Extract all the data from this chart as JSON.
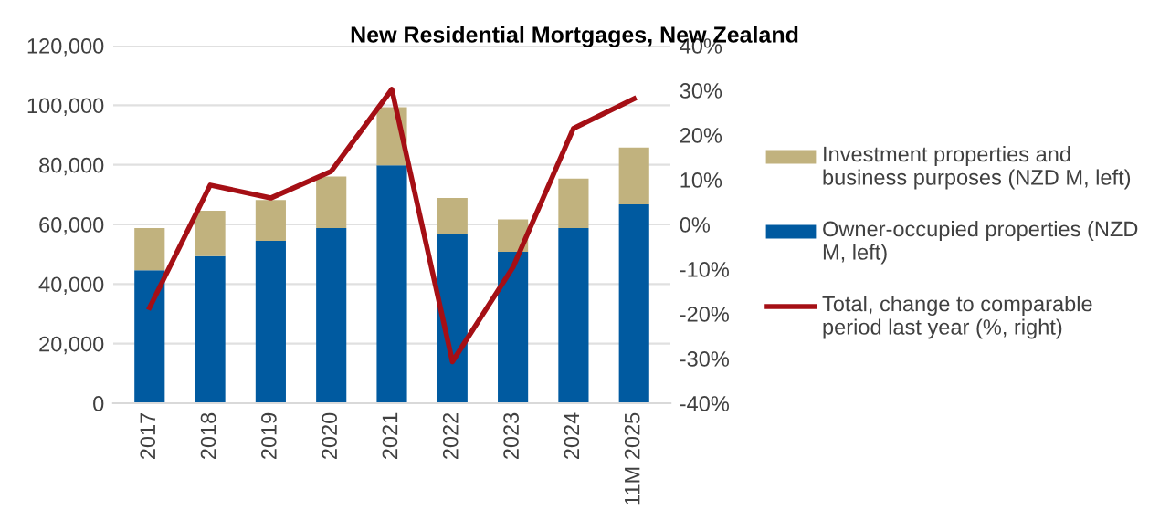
{
  "chart_data": {
    "type": "bar",
    "title": "New Residential Mortgages, New Zealand",
    "stacked": true,
    "categories": [
      "2017",
      "2018",
      "2019",
      "2020",
      "2021",
      "2022",
      "2023",
      "2024",
      "11M 2025"
    ],
    "series": [
      {
        "name": "Owner-occupied properties (NZD M, left)",
        "color": "#005aa0",
        "values": [
          44600,
          49400,
          54500,
          58800,
          79800,
          56600,
          50800,
          58800,
          66700
        ]
      },
      {
        "name": "Investment properties and business purposes (NZD M, left)",
        "color": "#c1b27e",
        "values": [
          14200,
          15200,
          13700,
          17300,
          19500,
          12300,
          10900,
          16600,
          19100
        ]
      },
      {
        "name": "Total, change to comparable period last year (%, right)",
        "type": "line",
        "axis": "y2",
        "color": "#a50f15",
        "values": [
          -18.6,
          8.8,
          5.9,
          11.9,
          30.2,
          -30.7,
          -9.6,
          21.5,
          28.1
        ]
      }
    ],
    "ylim": [
      0,
      120000
    ],
    "yticks": [
      {
        "value": 0,
        "label": "0"
      },
      {
        "value": 20000,
        "label": "20,000"
      },
      {
        "value": 40000,
        "label": "40,000"
      },
      {
        "value": 60000,
        "label": "60,000"
      },
      {
        "value": 80000,
        "label": "80,000"
      },
      {
        "value": 100000,
        "label": "100,000"
      },
      {
        "value": 120000,
        "label": "120,000"
      }
    ],
    "y2lim": [
      -40,
      40
    ],
    "y2ticks": [
      {
        "value": -40,
        "label": "-40%"
      },
      {
        "value": -30,
        "label": "-30%"
      },
      {
        "value": -20,
        "label": "-20%"
      },
      {
        "value": -10,
        "label": "-10%"
      },
      {
        "value": 0,
        "label": "0%"
      },
      {
        "value": 10,
        "label": "10%"
      },
      {
        "value": 20,
        "label": "20%"
      },
      {
        "value": 30,
        "label": "30%"
      },
      {
        "value": 40,
        "label": "40%"
      }
    ],
    "grid": "y",
    "legend": "right"
  }
}
